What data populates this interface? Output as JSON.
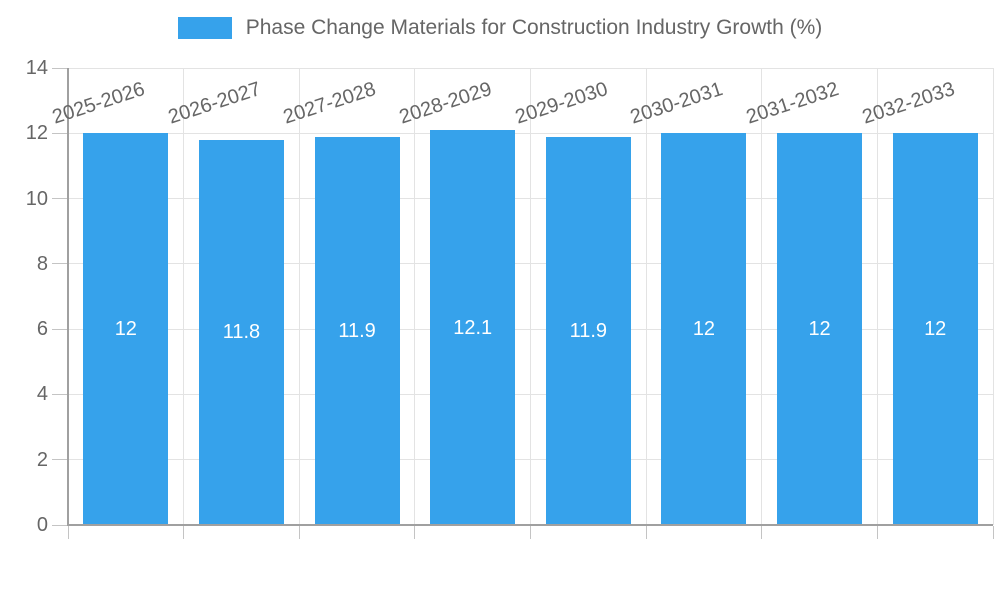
{
  "chart_data": {
    "type": "bar",
    "title": "Phase Change Materials for Construction Industry Growth (%)",
    "categories": [
      "2025-2026",
      "2026-2027",
      "2027-2028",
      "2028-2029",
      "2029-2030",
      "2030-2031",
      "2031-2032",
      "2032-2033"
    ],
    "values": [
      12,
      11.8,
      11.9,
      12.1,
      11.9,
      12,
      12,
      12
    ],
    "value_labels": [
      "12",
      "11.8",
      "11.9",
      "12.1",
      "11.9",
      "12",
      "12",
      "12"
    ],
    "yticks": [
      0,
      2,
      4,
      6,
      8,
      10,
      12,
      14
    ],
    "ytick_labels": [
      "0",
      "2",
      "4",
      "6",
      "8",
      "10",
      "12",
      "14"
    ],
    "ylim": [
      0,
      14
    ],
    "xlabel": "",
    "ylabel": "",
    "grid": true,
    "legend_position": "top",
    "colors": {
      "bar": "#36A2EB",
      "grid": "#e3e3e3",
      "axis": "#a0a0a0",
      "tick_mark": "#c4c4c4",
      "tick_text": "#666666",
      "value_text": "#ffffff",
      "background": "#ffffff"
    }
  }
}
